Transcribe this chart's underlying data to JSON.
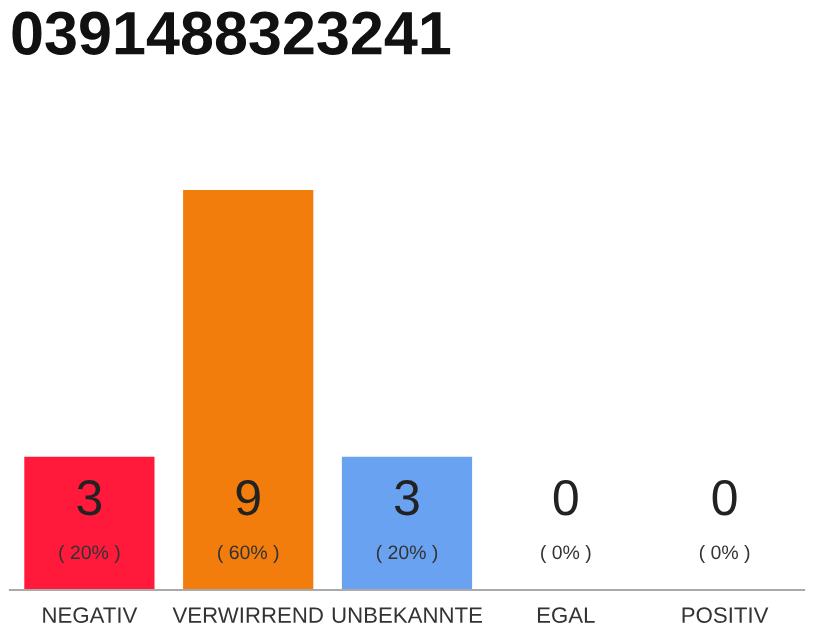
{
  "chart_data": {
    "type": "bar",
    "title": "0391488323241",
    "categories": [
      "NEGATIV",
      "VERWIRREND",
      "UNBEKANNTE",
      "EGAL",
      "POSITIV"
    ],
    "values": [
      3,
      9,
      3,
      0,
      0
    ],
    "colors": [
      "#ff1a3c",
      "#f27d0c",
      "#6aa2f2",
      null,
      null
    ],
    "data_labels": true,
    "annotations": [
      "( 20% )",
      "( 60% )",
      "( 20% )",
      "( 0% )",
      "( 0% )"
    ],
    "grid": false,
    "legend": false
  }
}
